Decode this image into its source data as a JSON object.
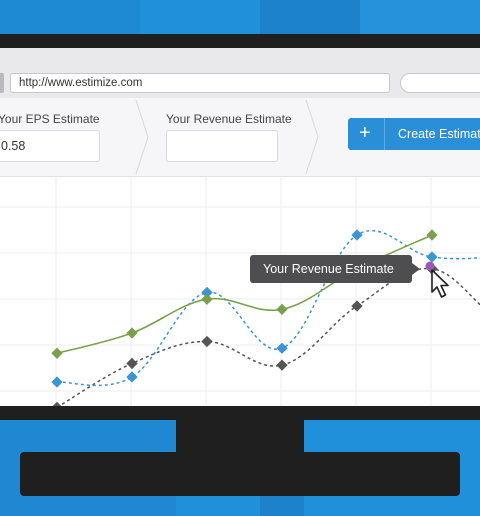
{
  "browser": {
    "url": "http://www.estimize.com"
  },
  "form": {
    "eps_label": "Your EPS Estimate",
    "eps_value": "0.58",
    "revenue_label": "Your Revenue Estimate",
    "revenue_value": "",
    "create_label": "Create Estimate",
    "plus_glyph": "+"
  },
  "tooltip": {
    "text": "Your Revenue Estimate"
  },
  "colors": {
    "green": "#7aa04e",
    "blue": "#3b95d3",
    "dark": "#555555",
    "accent": "#2a8fd6",
    "cursor_dot": "#9b59b6"
  },
  "chart_data": {
    "type": "line",
    "x": [
      1,
      2,
      3,
      4,
      5,
      6,
      7,
      8
    ],
    "ylim": [
      0,
      100
    ],
    "grid": true,
    "series": [
      {
        "values": [
          30,
          42,
          62,
          56,
          80,
          100,
          null,
          null
        ],
        "color": "green"
      },
      {
        "values": [
          13,
          16,
          66,
          33,
          100,
          87,
          88,
          95
        ],
        "color": "blue"
      },
      {
        "values": [
          -2,
          24,
          37,
          23,
          58,
          80,
          48,
          55
        ],
        "color": "dark"
      }
    ]
  }
}
